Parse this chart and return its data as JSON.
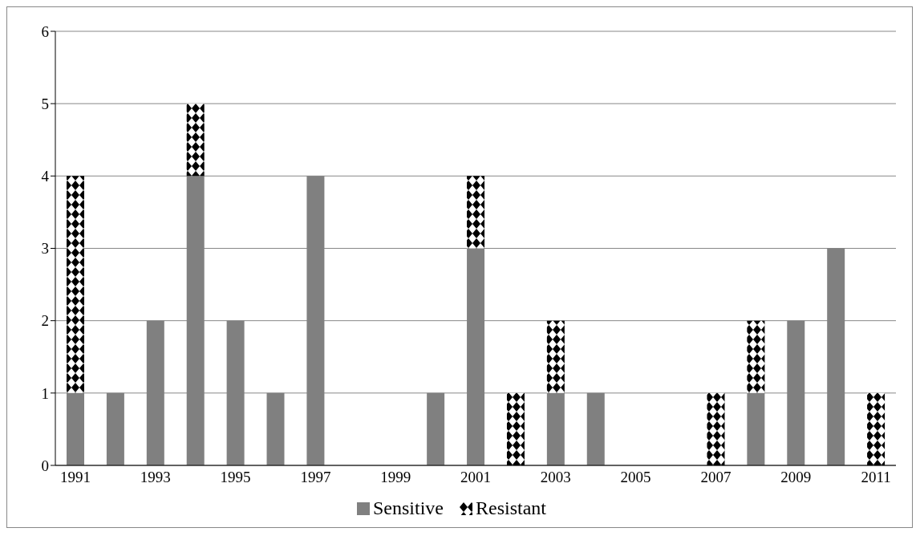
{
  "chart_data": {
    "type": "bar",
    "stacked": true,
    "categories": [
      "1991",
      null,
      "1993",
      null,
      "1995",
      null,
      "1997",
      null,
      "1999",
      null,
      "2001",
      null,
      "2003",
      null,
      "2005",
      null,
      "2007",
      null,
      "2009",
      null,
      "2011"
    ],
    "series": [
      {
        "name": "Sensitive",
        "color": "#808080",
        "values": [
          1,
          1,
          2,
          4,
          2,
          1,
          4,
          0,
          0,
          1,
          3,
          0,
          1,
          1,
          0,
          0,
          0,
          1,
          2,
          3,
          0
        ]
      },
      {
        "name": "Resistant",
        "color": "#000000",
        "values": [
          3,
          0,
          0,
          1,
          0,
          0,
          0,
          0,
          0,
          0,
          1,
          1,
          1,
          0,
          0,
          0,
          1,
          1,
          0,
          0,
          1
        ]
      }
    ],
    "ylim": [
      0,
      6
    ],
    "yticks": [
      0,
      1,
      2,
      3,
      4,
      5,
      6
    ],
    "grid": "y",
    "legend": "bottom"
  }
}
